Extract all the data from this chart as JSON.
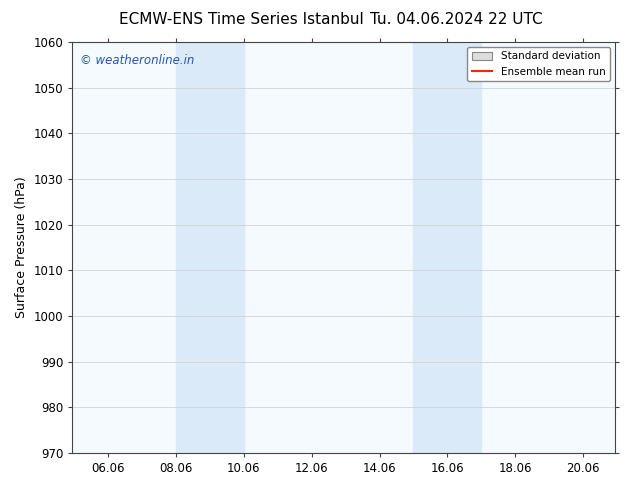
{
  "title_left": "ECMW-ENS Time Series Istanbul",
  "title_right": "Tu. 04.06.2024 22 UTC",
  "ylabel": "Surface Pressure (hPa)",
  "ylim": [
    970,
    1060
  ],
  "yticks": [
    970,
    980,
    990,
    1000,
    1010,
    1020,
    1030,
    1040,
    1050,
    1060
  ],
  "xlim_start": 5.0,
  "xlim_end": 21.0,
  "xticks": [
    6.06,
    8.06,
    10.06,
    12.06,
    14.06,
    16.06,
    18.06,
    20.06
  ],
  "xtick_labels": [
    "06.06",
    "08.06",
    "10.06",
    "12.06",
    "14.06",
    "16.06",
    "18.06",
    "20.06"
  ],
  "shaded_regions": [
    {
      "xmin": 8.06,
      "xmax": 10.06
    },
    {
      "xmin": 15.06,
      "xmax": 17.06
    }
  ],
  "shade_color": "#daeaf8",
  "watermark": "© weatheronline.in",
  "watermark_color": "#2255bb",
  "legend_std_label": "Standard deviation",
  "legend_mean_label": "Ensemble mean run",
  "legend_std_color": "#dddddd",
  "legend_mean_color": "#ff2200",
  "background_color": "#ffffff",
  "plot_bg_color": "#f5faff",
  "title_fontsize": 11,
  "axis_fontsize": 9,
  "tick_fontsize": 8.5
}
